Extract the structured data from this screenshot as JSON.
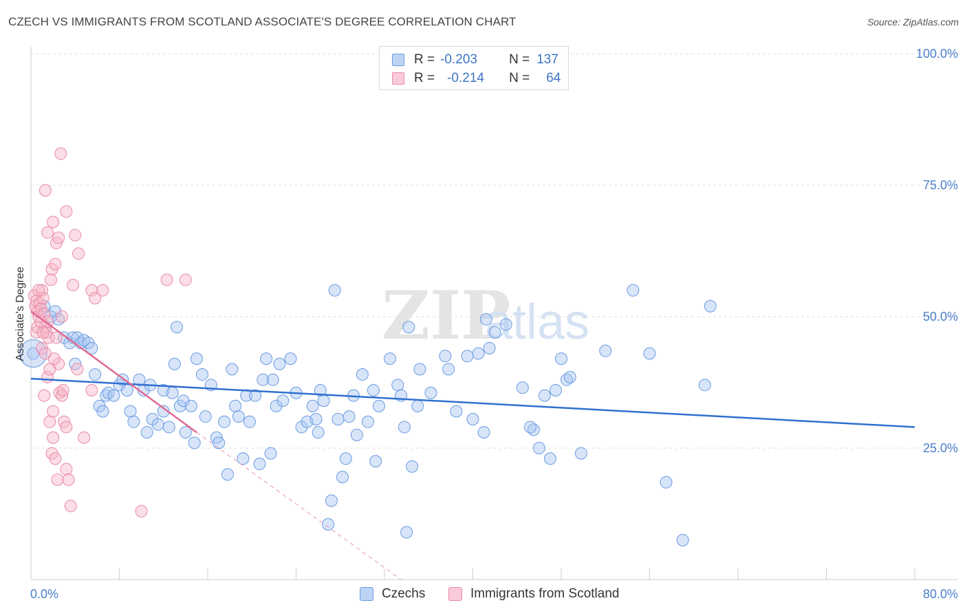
{
  "header": {
    "title": "CZECH VS IMMIGRANTS FROM SCOTLAND ASSOCIATE'S DEGREE CORRELATION CHART",
    "source": "Source: ZipAtlas.com"
  },
  "watermark": {
    "part1": "ZIP",
    "part2": "atlas"
  },
  "legend": {
    "rows": [
      {
        "r_label": "R =",
        "r_value": "-0.203",
        "n_label": "N =",
        "n_value": "137",
        "color": "#a8c6f2"
      },
      {
        "r_label": "R =",
        "r_value": "-0.214",
        "n_label": "N =",
        "n_value": "64",
        "color": "#f6b5c8"
      }
    ]
  },
  "bottom_legend": [
    {
      "label": "Czechs",
      "color": "#a8c6f2"
    },
    {
      "label": "Immigrants from Scotland",
      "color": "#f6b5c8"
    }
  ],
  "chart_data": {
    "type": "scatter",
    "title": "CZECH VS IMMIGRANTS FROM SCOTLAND ASSOCIATE'S DEGREE CORRELATION CHART",
    "xlabel": "",
    "ylabel": "Associate's Degree",
    "xlim": [
      0,
      80
    ],
    "ylim": [
      0,
      100
    ],
    "x_tick_labels": [
      "0.0%",
      "80.0%"
    ],
    "y_ticks": [
      25,
      50,
      75,
      100
    ],
    "y_tick_labels": [
      "25.0%",
      "50.0%",
      "75.0%",
      "100.0%"
    ],
    "grid": true,
    "legend_position": "top-center",
    "series": [
      {
        "name": "Czechs",
        "color": "#6a9ae0",
        "fill": "#a8c6f2",
        "trend": {
          "x0": 0,
          "y0": 38.2,
          "x1": 80,
          "y1": 29.0
        },
        "points": [
          [
            0.2,
            43
          ],
          [
            1.2,
            52
          ],
          [
            1.8,
            50
          ],
          [
            2.2,
            51
          ],
          [
            2.5,
            49.5
          ],
          [
            3.0,
            46
          ],
          [
            3.5,
            45
          ],
          [
            3.8,
            46
          ],
          [
            4.2,
            46
          ],
          [
            4.5,
            45
          ],
          [
            4.8,
            45.5
          ],
          [
            5.2,
            45
          ],
          [
            5.5,
            44
          ],
          [
            4.0,
            41
          ],
          [
            5.8,
            39
          ],
          [
            6.2,
            33
          ],
          [
            6.5,
            32
          ],
          [
            6.8,
            35
          ],
          [
            7.0,
            35.5
          ],
          [
            7.5,
            35
          ],
          [
            8.0,
            37
          ],
          [
            8.3,
            38
          ],
          [
            8.7,
            36
          ],
          [
            9.0,
            32
          ],
          [
            9.3,
            30
          ],
          [
            9.8,
            38
          ],
          [
            10.2,
            36
          ],
          [
            10.5,
            28
          ],
          [
            10.8,
            37
          ],
          [
            11.0,
            30.5
          ],
          [
            11.5,
            29.5
          ],
          [
            12.0,
            32
          ],
          [
            12.5,
            29
          ],
          [
            12.0,
            36
          ],
          [
            12.8,
            35.5
          ],
          [
            13.0,
            41
          ],
          [
            13.5,
            33
          ],
          [
            13.8,
            34
          ],
          [
            14.0,
            28
          ],
          [
            13.2,
            48
          ],
          [
            14.5,
            33
          ],
          [
            14.8,
            26
          ],
          [
            15.0,
            42
          ],
          [
            15.5,
            39
          ],
          [
            15.8,
            31
          ],
          [
            16.3,
            37
          ],
          [
            16.8,
            27
          ],
          [
            17.0,
            26
          ],
          [
            17.5,
            30
          ],
          [
            17.8,
            20
          ],
          [
            18.2,
            40
          ],
          [
            18.5,
            33
          ],
          [
            18.8,
            31
          ],
          [
            19.2,
            23
          ],
          [
            19.5,
            35
          ],
          [
            19.8,
            30
          ],
          [
            20.3,
            35
          ],
          [
            20.7,
            22
          ],
          [
            21.0,
            38
          ],
          [
            21.3,
            42
          ],
          [
            21.7,
            24
          ],
          [
            21.9,
            38
          ],
          [
            22.2,
            33
          ],
          [
            22.5,
            41
          ],
          [
            22.8,
            34
          ],
          [
            23.5,
            42
          ],
          [
            24.0,
            35.5
          ],
          [
            24.5,
            29
          ],
          [
            25.0,
            30
          ],
          [
            25.5,
            33
          ],
          [
            26.0,
            28
          ],
          [
            26.2,
            36
          ],
          [
            26.5,
            34
          ],
          [
            25.8,
            30.5
          ],
          [
            27.2,
            15
          ],
          [
            27.5,
            55
          ],
          [
            27.8,
            30.5
          ],
          [
            28.2,
            19.5
          ],
          [
            28.5,
            23
          ],
          [
            28.8,
            31
          ],
          [
            29.5,
            27.5
          ],
          [
            29.2,
            35
          ],
          [
            30.0,
            39
          ],
          [
            30.5,
            30
          ],
          [
            31.0,
            36
          ],
          [
            31.5,
            33
          ],
          [
            31.2,
            22.5
          ],
          [
            32.5,
            42
          ],
          [
            33.2,
            37
          ],
          [
            33.5,
            35
          ],
          [
            33.8,
            29
          ],
          [
            34.0,
            9
          ],
          [
            34.5,
            21.5
          ],
          [
            34.2,
            48
          ],
          [
            35.0,
            33
          ],
          [
            35.2,
            40
          ],
          [
            36.2,
            35.5
          ],
          [
            37.5,
            42.5
          ],
          [
            37.8,
            40
          ],
          [
            38.5,
            32
          ],
          [
            39.5,
            42.5
          ],
          [
            40.0,
            30.5
          ],
          [
            41.0,
            28
          ],
          [
            41.5,
            44
          ],
          [
            42.0,
            47
          ],
          [
            43.0,
            48.5
          ],
          [
            44.5,
            36.5
          ],
          [
            45.5,
            28.5
          ],
          [
            46.0,
            25
          ],
          [
            46.5,
            35
          ],
          [
            47.0,
            23
          ],
          [
            47.5,
            36
          ],
          [
            48.5,
            38
          ],
          [
            48.0,
            42
          ],
          [
            49.8,
            24
          ],
          [
            52.0,
            43.5
          ],
          [
            54.5,
            55
          ],
          [
            56.0,
            43
          ],
          [
            57.5,
            18.5
          ],
          [
            59.0,
            7.5
          ],
          [
            61.0,
            37
          ],
          [
            61.5,
            52
          ],
          [
            40.5,
            43
          ],
          [
            41.2,
            49.5
          ],
          [
            45.2,
            29
          ],
          [
            48.8,
            38.5
          ],
          [
            26.9,
            10.5
          ]
        ]
      },
      {
        "name": "Immigrants from Scotland",
        "color": "#e88aa8",
        "fill": "#f6b5c8",
        "trend": {
          "x0": 0,
          "y0": 51.0,
          "x1": 15,
          "y1": 28.0
        },
        "trend_extension": {
          "x0": 15,
          "y0": 28.0,
          "x1": 33.5,
          "y1": 0
        },
        "points": [
          [
            0.3,
            54
          ],
          [
            0.4,
            52
          ],
          [
            0.5,
            53
          ],
          [
            0.6,
            51
          ],
          [
            0.7,
            50
          ],
          [
            0.8,
            52.5
          ],
          [
            0.9,
            51.5
          ],
          [
            1.0,
            55
          ],
          [
            1.1,
            53.5
          ],
          [
            1.2,
            50.5
          ],
          [
            1.3,
            48
          ],
          [
            1.4,
            47
          ],
          [
            1.5,
            49
          ],
          [
            1.6,
            46
          ],
          [
            0.5,
            47
          ],
          [
            0.6,
            48
          ],
          [
            0.7,
            55
          ],
          [
            1.0,
            44
          ],
          [
            1.3,
            43
          ],
          [
            1.5,
            38.5
          ],
          [
            1.2,
            35
          ],
          [
            1.7,
            30
          ],
          [
            1.9,
            24
          ],
          [
            2.0,
            27
          ],
          [
            2.2,
            23
          ],
          [
            2.4,
            19
          ],
          [
            2.6,
            35.5
          ],
          [
            2.8,
            35
          ],
          [
            3.0,
            30
          ],
          [
            3.2,
            21
          ],
          [
            3.4,
            19
          ],
          [
            3.6,
            14
          ],
          [
            2.0,
            32
          ],
          [
            2.5,
            41
          ],
          [
            2.8,
            50
          ],
          [
            1.8,
            57
          ],
          [
            1.9,
            59
          ],
          [
            2.2,
            60
          ],
          [
            2.3,
            64
          ],
          [
            2.5,
            65
          ],
          [
            1.5,
            66
          ],
          [
            2.0,
            68
          ],
          [
            3.2,
            70
          ],
          [
            1.3,
            74
          ],
          [
            2.7,
            81
          ],
          [
            4.0,
            65.5
          ],
          [
            4.3,
            62
          ],
          [
            5.5,
            55
          ],
          [
            5.8,
            53.5
          ],
          [
            14.0,
            57
          ],
          [
            12.3,
            57
          ],
          [
            10.0,
            13
          ],
          [
            4.8,
            27
          ],
          [
            3.2,
            29
          ],
          [
            2.1,
            42
          ],
          [
            1.7,
            40
          ],
          [
            2.3,
            46
          ],
          [
            0.9,
            49
          ],
          [
            1.1,
            47
          ],
          [
            5.5,
            36
          ],
          [
            4.2,
            40
          ],
          [
            2.9,
            36
          ],
          [
            6.5,
            55
          ],
          [
            3.8,
            56
          ]
        ]
      }
    ]
  }
}
